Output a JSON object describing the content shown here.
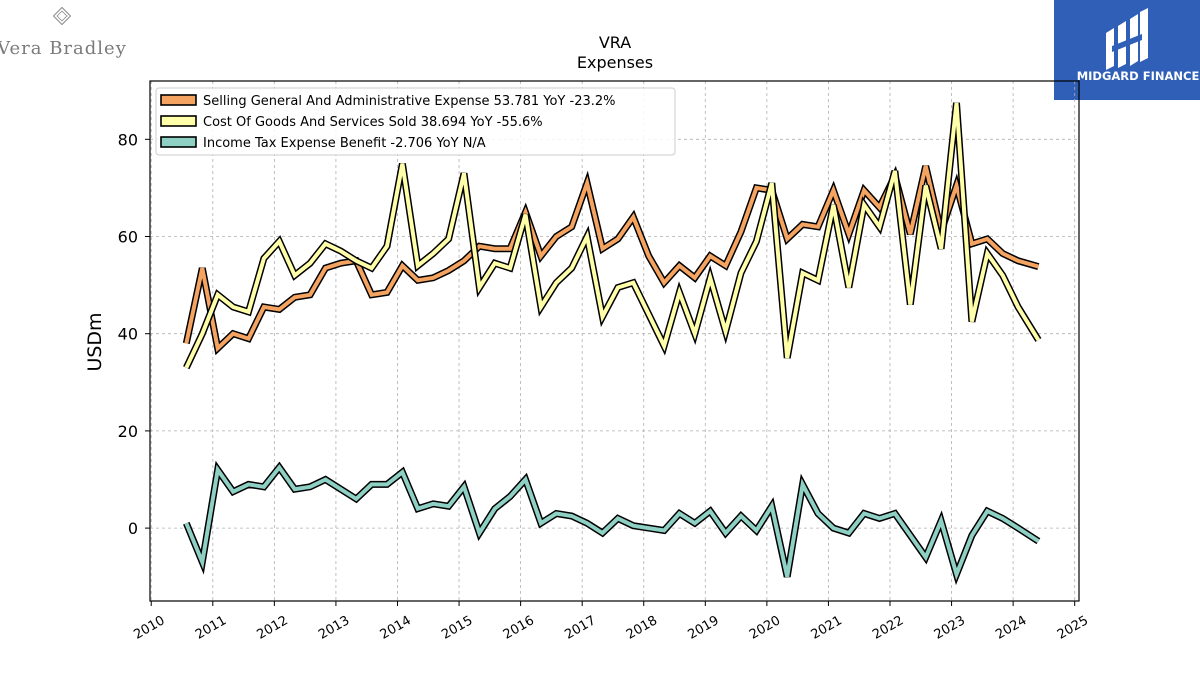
{
  "brand": {
    "left_logo_text": "Vera Bradley",
    "right_logo_text": "MIDGARD FINANCE",
    "right_logo_color": "#2f5fb7"
  },
  "chart_data": {
    "type": "line",
    "title": "VRA",
    "subtitle": "Expenses",
    "ylabel": "USDm",
    "xlabel": "",
    "xlim": [
      2009.98,
      2025.07
    ],
    "ylim": [
      -15,
      92
    ],
    "grid": true,
    "legend_position": "top-left",
    "xticks": [
      2010,
      2011,
      2012,
      2013,
      2014,
      2015,
      2016,
      2017,
      2018,
      2019,
      2020,
      2021,
      2022,
      2023,
      2024,
      2025
    ],
    "yticks": [
      0,
      20,
      40,
      60,
      80
    ],
    "series": [
      {
        "name": "Selling General And Administrative Expense",
        "legend_label": "Selling General And Administrative Expense  53.781 YoY -23.2%",
        "color": "#f4a460",
        "points": [
          [
            2010.57,
            38
          ],
          [
            2010.83,
            53.5
          ],
          [
            2011.08,
            37
          ],
          [
            2011.33,
            40
          ],
          [
            2011.58,
            39
          ],
          [
            2011.83,
            45.5
          ],
          [
            2012.08,
            45
          ],
          [
            2012.33,
            47.5
          ],
          [
            2012.58,
            48
          ],
          [
            2012.83,
            53.5
          ],
          [
            2013.08,
            54.5
          ],
          [
            2013.33,
            55
          ],
          [
            2013.58,
            48
          ],
          [
            2013.83,
            48.5
          ],
          [
            2014.08,
            54
          ],
          [
            2014.33,
            51
          ],
          [
            2014.58,
            51.5
          ],
          [
            2014.83,
            53
          ],
          [
            2015.08,
            55
          ],
          [
            2015.33,
            58
          ],
          [
            2015.58,
            57.5
          ],
          [
            2015.83,
            57.5
          ],
          [
            2016.08,
            65
          ],
          [
            2016.33,
            56
          ],
          [
            2016.58,
            60
          ],
          [
            2016.83,
            62
          ],
          [
            2017.08,
            71
          ],
          [
            2017.33,
            57.5
          ],
          [
            2017.58,
            59.5
          ],
          [
            2017.83,
            64
          ],
          [
            2018.08,
            56
          ],
          [
            2018.33,
            50.5
          ],
          [
            2018.58,
            54
          ],
          [
            2018.83,
            51.5
          ],
          [
            2019.08,
            56
          ],
          [
            2019.33,
            54
          ],
          [
            2019.58,
            61
          ],
          [
            2019.83,
            70
          ],
          [
            2020.08,
            69.5
          ],
          [
            2020.33,
            59.5
          ],
          [
            2020.58,
            62.5
          ],
          [
            2020.83,
            62
          ],
          [
            2021.08,
            69.5
          ],
          [
            2021.33,
            60.5
          ],
          [
            2021.58,
            69.5
          ],
          [
            2021.83,
            66
          ],
          [
            2022.08,
            72.5
          ],
          [
            2022.33,
            60.5
          ],
          [
            2022.58,
            74.5
          ],
          [
            2022.83,
            61
          ],
          [
            2023.08,
            70.5
          ],
          [
            2023.33,
            58.5
          ],
          [
            2023.58,
            59.5
          ],
          [
            2023.83,
            56.5
          ],
          [
            2024.08,
            55
          ],
          [
            2024.41,
            53.8
          ]
        ]
      },
      {
        "name": "Cost Of Goods And Services Sold",
        "legend_label": "Cost Of Goods And Services Sold  38.694 YoY -55.6%",
        "color": "#ffffaa",
        "points": [
          [
            2010.57,
            33
          ],
          [
            2010.83,
            40
          ],
          [
            2011.08,
            48
          ],
          [
            2011.33,
            45.5
          ],
          [
            2011.58,
            44.5
          ],
          [
            2011.83,
            55.5
          ],
          [
            2012.08,
            59
          ],
          [
            2012.33,
            52
          ],
          [
            2012.58,
            54.5
          ],
          [
            2012.83,
            58.5
          ],
          [
            2013.08,
            57
          ],
          [
            2013.33,
            55
          ],
          [
            2013.58,
            53.5
          ],
          [
            2013.83,
            58
          ],
          [
            2014.08,
            75
          ],
          [
            2014.33,
            54
          ],
          [
            2014.58,
            56.5
          ],
          [
            2014.83,
            59.5
          ],
          [
            2015.08,
            73
          ],
          [
            2015.33,
            49.5
          ],
          [
            2015.58,
            54.5
          ],
          [
            2015.83,
            53.5
          ],
          [
            2016.08,
            64.5
          ],
          [
            2016.33,
            45.5
          ],
          [
            2016.58,
            50.5
          ],
          [
            2016.83,
            53.5
          ],
          [
            2017.08,
            60
          ],
          [
            2017.33,
            43.5
          ],
          [
            2017.58,
            49.5
          ],
          [
            2017.83,
            50.5
          ],
          [
            2018.08,
            44
          ],
          [
            2018.33,
            37.5
          ],
          [
            2018.58,
            48.5
          ],
          [
            2018.83,
            40
          ],
          [
            2019.08,
            51.5
          ],
          [
            2019.33,
            40.5
          ],
          [
            2019.58,
            52.5
          ],
          [
            2019.83,
            59
          ],
          [
            2020.08,
            71
          ],
          [
            2020.33,
            35
          ],
          [
            2020.58,
            52.5
          ],
          [
            2020.83,
            51
          ],
          [
            2021.08,
            66.5
          ],
          [
            2021.33,
            49.5
          ],
          [
            2021.58,
            66.5
          ],
          [
            2021.83,
            62
          ],
          [
            2022.08,
            73.5
          ],
          [
            2022.33,
            46
          ],
          [
            2022.58,
            70.5
          ],
          [
            2022.83,
            57.5
          ],
          [
            2023.08,
            87.5
          ],
          [
            2023.33,
            42.5
          ],
          [
            2023.58,
            56.5
          ],
          [
            2023.83,
            52
          ],
          [
            2024.08,
            45.5
          ],
          [
            2024.41,
            38.7
          ]
        ]
      },
      {
        "name": "Income Tax Expense Benefit",
        "legend_label": "Income Tax Expense Benefit  -2.706 YoY N/A",
        "color": "#8fd0c4",
        "points": [
          [
            2010.57,
            1
          ],
          [
            2010.83,
            -7
          ],
          [
            2011.08,
            12
          ],
          [
            2011.33,
            7.5
          ],
          [
            2011.58,
            9
          ],
          [
            2011.83,
            8.5
          ],
          [
            2012.08,
            12.5
          ],
          [
            2012.33,
            8
          ],
          [
            2012.58,
            8.5
          ],
          [
            2012.83,
            10
          ],
          [
            2013.08,
            8
          ],
          [
            2013.33,
            6
          ],
          [
            2013.58,
            9
          ],
          [
            2013.83,
            9
          ],
          [
            2014.08,
            11.5
          ],
          [
            2014.33,
            4
          ],
          [
            2014.58,
            5
          ],
          [
            2014.83,
            4.5
          ],
          [
            2015.08,
            8.5
          ],
          [
            2015.33,
            -1
          ],
          [
            2015.58,
            4
          ],
          [
            2015.83,
            6.5
          ],
          [
            2016.08,
            10
          ],
          [
            2016.33,
            1
          ],
          [
            2016.58,
            3
          ],
          [
            2016.83,
            2.5
          ],
          [
            2017.08,
            1
          ],
          [
            2017.33,
            -1
          ],
          [
            2017.58,
            2
          ],
          [
            2017.83,
            0.5
          ],
          [
            2018.08,
            0
          ],
          [
            2018.33,
            -0.5
          ],
          [
            2018.58,
            3
          ],
          [
            2018.83,
            1
          ],
          [
            2019.08,
            3.5
          ],
          [
            2019.33,
            -1
          ],
          [
            2019.58,
            2.5
          ],
          [
            2019.83,
            -0.5
          ],
          [
            2020.08,
            4.5
          ],
          [
            2020.33,
            -10
          ],
          [
            2020.58,
            9
          ],
          [
            2020.83,
            3
          ],
          [
            2021.08,
            0
          ],
          [
            2021.33,
            -1
          ],
          [
            2021.58,
            3
          ],
          [
            2021.83,
            2
          ],
          [
            2022.08,
            3
          ],
          [
            2022.33,
            -1.5
          ],
          [
            2022.58,
            -6
          ],
          [
            2022.83,
            1.5
          ],
          [
            2023.08,
            -9.5
          ],
          [
            2023.33,
            -1.5
          ],
          [
            2023.58,
            3.5
          ],
          [
            2023.83,
            2
          ],
          [
            2024.08,
            0
          ],
          [
            2024.41,
            -2.7
          ]
        ]
      }
    ]
  }
}
